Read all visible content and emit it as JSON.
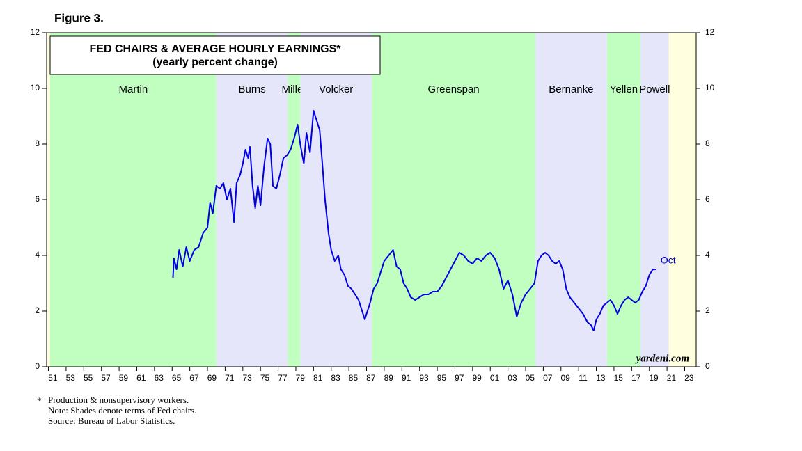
{
  "chart_data": {
    "type": "line",
    "figure_label": "Figure 3.",
    "title": "FED CHAIRS & AVERAGE HOURLY EARNINGS*",
    "subtitle": "(yearly percent change)",
    "background": "#ffffe0",
    "bands": [
      {
        "name": "Martin",
        "start": 1951.2,
        "end": 1970.0,
        "color": "#c0ffc0"
      },
      {
        "name": "Burns",
        "start": 1970.0,
        "end": 1978.1,
        "color": "#e6e6fa"
      },
      {
        "name": "Miller",
        "start": 1978.1,
        "end": 1979.5,
        "color": "#c0ffc0"
      },
      {
        "name": "Volcker",
        "start": 1979.5,
        "end": 1987.6,
        "color": "#e6e6fa"
      },
      {
        "name": "Greenspan",
        "start": 1987.6,
        "end": 2006.1,
        "color": "#c0ffc0"
      },
      {
        "name": "Bernanke",
        "start": 2006.1,
        "end": 2014.2,
        "color": "#e6e6fa"
      },
      {
        "name": "Yellen",
        "start": 2014.2,
        "end": 2018.0,
        "color": "#c0ffc0"
      },
      {
        "name": "Powell",
        "start": 2018.0,
        "end": 2021.2,
        "color": "#e6e6fa"
      }
    ],
    "x": [
      1965.1,
      1965.2,
      1965.5,
      1965.8,
      1966.2,
      1966.6,
      1967.0,
      1967.5,
      1968.0,
      1968.5,
      1969.0,
      1969.3,
      1969.6,
      1970.0,
      1970.4,
      1970.8,
      1971.2,
      1971.6,
      1972.0,
      1972.3,
      1972.7,
      1973.0,
      1973.3,
      1973.6,
      1973.8,
      1974.1,
      1974.4,
      1974.7,
      1975.0,
      1975.4,
      1975.8,
      1976.1,
      1976.4,
      1976.8,
      1977.2,
      1977.6,
      1978.0,
      1978.4,
      1978.8,
      1979.2,
      1979.5,
      1979.9,
      1980.2,
      1980.6,
      1981.0,
      1981.3,
      1981.7,
      1982.0,
      1982.3,
      1982.7,
      1983.0,
      1983.4,
      1983.8,
      1984.1,
      1984.5,
      1984.9,
      1985.3,
      1985.7,
      1986.1,
      1986.5,
      1986.8,
      1987.0,
      1987.4,
      1987.8,
      1988.2,
      1988.6,
      1989.0,
      1989.5,
      1990.0,
      1990.4,
      1990.8,
      1991.2,
      1991.6,
      1992.0,
      1992.5,
      1993.0,
      1993.5,
      1994.0,
      1994.5,
      1995.0,
      1995.5,
      1996.0,
      1996.5,
      1997.0,
      1997.5,
      1998.0,
      1998.5,
      1999.0,
      1999.5,
      2000.0,
      2000.5,
      2001.0,
      2001.5,
      2002.0,
      2002.5,
      2003.0,
      2003.5,
      2004.0,
      2004.5,
      2005.0,
      2005.5,
      2006.0,
      2006.4,
      2006.8,
      2007.2,
      2007.6,
      2008.0,
      2008.4,
      2008.8,
      2009.2,
      2009.6,
      2010.0,
      2010.5,
      2011.0,
      2011.5,
      2012.0,
      2012.4,
      2012.7,
      2013.0,
      2013.4,
      2013.8,
      2014.2,
      2014.6,
      2015.0,
      2015.4,
      2015.8,
      2016.2,
      2016.6,
      2017.0,
      2017.4,
      2017.8,
      2018.2,
      2018.6,
      2019.0,
      2019.4,
      2019.8
    ],
    "series": [
      {
        "color": "#0000e0",
        "values": [
          3.2,
          3.9,
          3.5,
          4.2,
          3.6,
          4.3,
          3.8,
          4.2,
          4.3,
          4.8,
          5.0,
          5.9,
          5.5,
          6.5,
          6.4,
          6.6,
          6.0,
          6.4,
          5.2,
          6.6,
          6.9,
          7.3,
          7.8,
          7.5,
          7.9,
          6.5,
          5.7,
          6.5,
          5.8,
          7.2,
          8.2,
          8.0,
          6.5,
          6.4,
          6.9,
          7.5,
          7.6,
          7.8,
          8.2,
          8.7,
          8.0,
          7.3,
          8.4,
          7.7,
          9.2,
          8.9,
          8.5,
          7.3,
          6.0,
          4.8,
          4.2,
          3.8,
          4.0,
          3.5,
          3.3,
          2.9,
          2.8,
          2.6,
          2.4,
          2.0,
          1.7,
          1.9,
          2.3,
          2.8,
          3.0,
          3.4,
          3.8,
          4.0,
          4.2,
          3.6,
          3.5,
          3.0,
          2.8,
          2.5,
          2.4,
          2.5,
          2.6,
          2.6,
          2.7,
          2.7,
          2.9,
          3.2,
          3.5,
          3.8,
          4.1,
          4.0,
          3.8,
          3.7,
          3.9,
          3.8,
          4.0,
          4.1,
          3.9,
          3.5,
          2.8,
          3.1,
          2.6,
          1.8,
          2.3,
          2.6,
          2.8,
          3.0,
          3.8,
          4.0,
          4.1,
          4.0,
          3.8,
          3.7,
          3.8,
          3.5,
          2.8,
          2.5,
          2.3,
          2.1,
          1.9,
          1.6,
          1.5,
          1.3,
          1.7,
          1.9,
          2.2,
          2.3,
          2.4,
          2.2,
          1.9,
          2.2,
          2.4,
          2.5,
          2.4,
          2.3,
          2.4,
          2.7,
          2.9,
          3.3,
          3.5,
          3.5
        ]
      }
    ],
    "annotation": "Oct",
    "xlim": [
      1950.8,
      2024.3
    ],
    "xticks": [
      {
        "value": 1951,
        "label": "51"
      },
      {
        "value": 1953,
        "label": "53"
      },
      {
        "value": 1955,
        "label": "55"
      },
      {
        "value": 1957,
        "label": "57"
      },
      {
        "value": 1959,
        "label": "59"
      },
      {
        "value": 1961,
        "label": "61"
      },
      {
        "value": 1963,
        "label": "63"
      },
      {
        "value": 1965,
        "label": "65"
      },
      {
        "value": 1967,
        "label": "67"
      },
      {
        "value": 1969,
        "label": "69"
      },
      {
        "value": 1971,
        "label": "71"
      },
      {
        "value": 1973,
        "label": "73"
      },
      {
        "value": 1975,
        "label": "75"
      },
      {
        "value": 1977,
        "label": "77"
      },
      {
        "value": 1979,
        "label": "79"
      },
      {
        "value": 1981,
        "label": "81"
      },
      {
        "value": 1983,
        "label": "83"
      },
      {
        "value": 1985,
        "label": "85"
      },
      {
        "value": 1987,
        "label": "87"
      },
      {
        "value": 1989,
        "label": "89"
      },
      {
        "value": 1991,
        "label": "91"
      },
      {
        "value": 1993,
        "label": "93"
      },
      {
        "value": 1995,
        "label": "95"
      },
      {
        "value": 1997,
        "label": "97"
      },
      {
        "value": 1999,
        "label": "99"
      },
      {
        "value": 2001,
        "label": "01"
      },
      {
        "value": 2003,
        "label": "03"
      },
      {
        "value": 2005,
        "label": "05"
      },
      {
        "value": 2007,
        "label": "07"
      },
      {
        "value": 2009,
        "label": "09"
      },
      {
        "value": 2011,
        "label": "11"
      },
      {
        "value": 2013,
        "label": "13"
      },
      {
        "value": 2015,
        "label": "15"
      },
      {
        "value": 2017,
        "label": "17"
      },
      {
        "value": 2019,
        "label": "19"
      },
      {
        "value": 2021,
        "label": "21"
      },
      {
        "value": 2023,
        "label": "23"
      }
    ],
    "ylim": [
      0,
      12
    ],
    "yticks": [
      0,
      2,
      4,
      6,
      8,
      10,
      12
    ],
    "watermark": "yardeni.com",
    "notes": [
      "*",
      "Production & nonsupervisory workers.",
      "Note: Shades denote terms of Fed chairs.",
      "Source: Bureau of Labor Statistics."
    ]
  }
}
